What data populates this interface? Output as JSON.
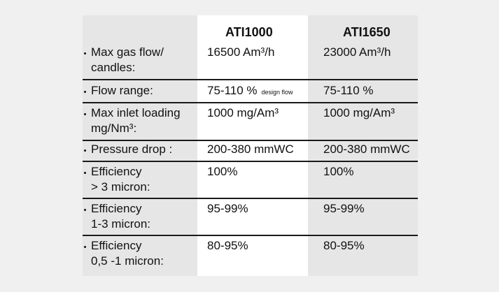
{
  "table": {
    "columns": [
      "ATI1000",
      "ATI1650"
    ],
    "rows": [
      {
        "label": [
          "Max gas flow/",
          "candles:"
        ],
        "values": [
          "16500 Am³/h",
          "23000 Am³/h"
        ]
      },
      {
        "label": [
          "Flow range:"
        ],
        "values": [
          "75-110 %",
          "75-110 %"
        ],
        "note": "design flow"
      },
      {
        "label": [
          "Max inlet loading",
          "mg/Nm³:"
        ],
        "values": [
          "1000 mg/Am³",
          "1000 mg/Am³"
        ]
      },
      {
        "label": [
          "Pressure drop :"
        ],
        "values": [
          "200-380 mmWC",
          "200-380 mmWC"
        ]
      },
      {
        "label": [
          "Efficiency",
          "> 3 micron:"
        ],
        "values": [
          "100%",
          "100%"
        ]
      },
      {
        "label": [
          "Efficiency",
          "1-3 micron:"
        ],
        "values": [
          "95-99%",
          "95-99%"
        ]
      },
      {
        "label": [
          "Efficiency",
          "0,5 -1 micron:"
        ],
        "values": [
          "80-95%",
          "80-95%"
        ]
      }
    ]
  }
}
